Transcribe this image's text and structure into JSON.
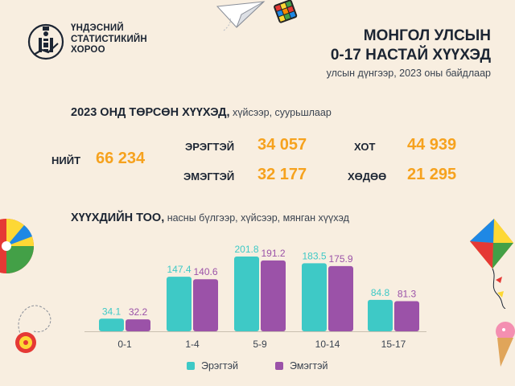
{
  "org": {
    "line1": "ҮНДЭСНИЙ",
    "line2": "СТАТИСТИКИЙН",
    "line3": "ХОРОО"
  },
  "header": {
    "title_line1": "МОНГОЛ УЛСЫН",
    "title_line2": "0-17 НАСТАЙ ХҮҮХЭД",
    "subtitle": "улсын дүнгээр, 2023 оны байдлаар"
  },
  "born": {
    "heading": "2023 ОНД ТӨРСӨН ХҮҮХЭД,",
    "heading_note": " хүйсээр, суурьшлаар",
    "total_label": "НИЙТ",
    "total_value": "66 234",
    "male_label": "ЭРЭГТЭЙ",
    "male_value": "34 057",
    "female_label": "ЭМЭГТЭЙ",
    "female_value": "32 177",
    "urban_label": "ХОТ",
    "urban_value": "44 939",
    "rural_label": "ХӨДӨӨ",
    "rural_value": "21 295"
  },
  "chart_heading": "ХҮҮХДИЙН ТОО,",
  "chart_heading_note": " насны бүлгээр, хүйсээр, мянган хүүхэд",
  "colors": {
    "male": "#3ec9c6",
    "female": "#9b52a8",
    "accent": "#f6a21e"
  },
  "chart_data": {
    "type": "bar",
    "title": "ХҮҮХДИЙН ТОО, насны бүлгээр, хүйсээр, мянган хүүхэд",
    "categories": [
      "0-1",
      "1-4",
      "5-9",
      "10-14",
      "15-17"
    ],
    "series": [
      {
        "name": "Эрэгтэй",
        "values": [
          34.1,
          147.4,
          201.8,
          183.5,
          84.8
        ],
        "labels": [
          "34.1",
          "147.4",
          "201.8",
          "183.5",
          "84.8"
        ]
      },
      {
        "name": "Эмэгтэй",
        "values": [
          32.2,
          140.6,
          191.2,
          175.9,
          81.3
        ],
        "labels": [
          "32.2",
          "140.6",
          "191.2",
          "175.9",
          "81.3"
        ]
      }
    ],
    "ylim": [
      0,
      210
    ],
    "grid": false,
    "legend": "bottom"
  }
}
